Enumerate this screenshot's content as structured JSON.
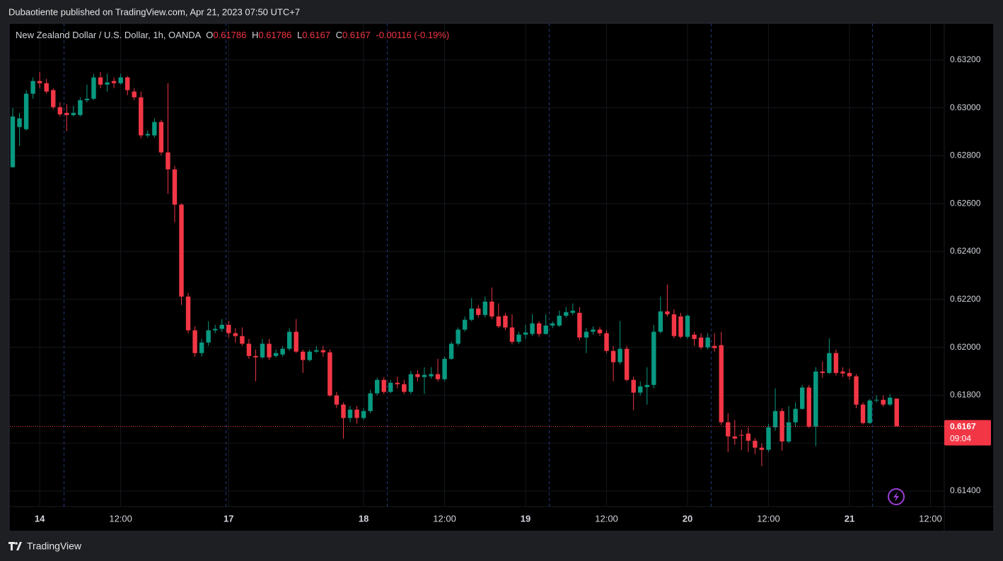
{
  "header": {
    "publisher": "Dubaotiente published on TradingView.com, Apr 21, 2023 07:50 UTC+7"
  },
  "footer": {
    "brand": "TradingView"
  },
  "chart_data": {
    "type": "candlestick",
    "title": "New Zealand Dollar / U.S. Dollar, 1h, OANDA",
    "legend_labels": {
      "open": "O",
      "high": "H",
      "low": "L",
      "close": "C"
    },
    "change": "-0.00116 (-0.19%)",
    "countdown": "09:04",
    "up_color": "#089981",
    "down_color": "#f23645",
    "grid": true,
    "open": [
      0.62752,
      0.6292,
      0.62911,
      0.63059,
      0.63112,
      0.63103,
      0.63074,
      0.63003,
      0.62979,
      0.6297,
      0.6297,
      0.63032,
      0.63038,
      0.63127,
      0.63097,
      0.63112,
      0.63103,
      0.63127,
      0.63068,
      0.63044,
      0.62885,
      0.62885,
      0.62941,
      0.62814,
      0.62743,
      0.62596,
      0.62212,
      0.62071,
      0.61976,
      0.6202,
      0.62071,
      0.62077,
      0.62094,
      0.62059,
      0.62047,
      0.62015,
      0.61964,
      0.61958,
      0.62015,
      0.61964,
      0.6197,
      0.61994,
      0.62065,
      0.61982,
      0.61947,
      0.61982,
      0.61988,
      0.61979,
      0.61799,
      0.61761,
      0.61705,
      0.6174,
      0.61705,
      0.61734,
      0.61808,
      0.61864,
      0.61814,
      0.61852,
      0.61846,
      0.61814,
      0.61888,
      0.61876,
      0.61879,
      0.61888,
      0.61867,
      0.61952,
      0.62015,
      0.62074,
      0.62115,
      0.62162,
      0.62135,
      0.62191,
      0.62129,
      0.62132,
      0.62083,
      0.62023,
      0.62053,
      0.62056,
      0.621,
      0.62056,
      0.62091,
      0.62091,
      0.62132,
      0.62144,
      0.62144,
      0.62041,
      0.62065,
      0.62074,
      0.62059,
      0.61985,
      0.61938,
      0.61994,
      0.61864,
      0.61811,
      0.61834,
      0.61843,
      0.62065,
      0.6215,
      0.62138,
      0.62129,
      0.62044,
      0.62053,
      0.62041,
      0.62,
      0.62006,
      0.62009,
      0.61687,
      0.61628,
      0.61634,
      0.6164,
      0.6161,
      0.61581,
      0.61572,
      0.61666,
      0.61734,
      0.61607,
      0.61687,
      0.61743,
      0.61832,
      0.61669,
      0.61899,
      0.61893,
      0.61976,
      0.61899,
      0.61893,
      0.61879,
      0.61761,
      0.61684,
      0.61778,
      0.61781,
      0.61761,
      0.61786
    ],
    "high": [
      0.62999,
      0.62979,
      0.63074,
      0.63127,
      0.6315,
      0.63121,
      0.63082,
      0.63023,
      0.63015,
      0.63009,
      0.63044,
      0.63097,
      0.63142,
      0.6315,
      0.63142,
      0.63127,
      0.63142,
      0.63133,
      0.63082,
      0.63068,
      0.62906,
      0.62956,
      0.6295,
      0.63103,
      0.62758,
      0.62601,
      0.62227,
      0.62088,
      0.62035,
      0.62109,
      0.62094,
      0.62118,
      0.62109,
      0.6208,
      0.62083,
      0.62035,
      0.61991,
      0.62035,
      0.62035,
      0.61991,
      0.62006,
      0.6208,
      0.62118,
      0.61991,
      0.61991,
      0.62006,
      0.62006,
      0.61991,
      0.61814,
      0.6177,
      0.61755,
      0.61755,
      0.61746,
      0.61823,
      0.61873,
      0.61876,
      0.61864,
      0.61878,
      0.61864,
      0.61902,
      0.61905,
      0.61917,
      0.61917,
      0.61952,
      0.61961,
      0.62023,
      0.62083,
      0.62129,
      0.62206,
      0.62176,
      0.62212,
      0.6225,
      0.62183,
      0.62144,
      0.62138,
      0.62065,
      0.62094,
      0.62138,
      0.62109,
      0.62138,
      0.62109,
      0.62153,
      0.62168,
      0.62183,
      0.62168,
      0.6208,
      0.62088,
      0.62085,
      0.62071,
      0.62006,
      0.62109,
      0.62006,
      0.61878,
      0.61858,
      0.61917,
      0.62094,
      0.62212,
      0.62262,
      0.62159,
      0.62144,
      0.62138,
      0.62065,
      0.62059,
      0.62059,
      0.62059,
      0.62065,
      0.61725,
      0.61696,
      0.61657,
      0.61666,
      0.61622,
      0.61599,
      0.61681,
      0.61829,
      0.61746,
      0.61755,
      0.6177,
      0.61843,
      0.61843,
      0.61917,
      0.61941,
      0.62038,
      0.61991,
      0.61917,
      0.61911,
      0.61888,
      0.6177,
      0.61784,
      0.61799,
      0.61799,
      0.61805,
      0.61786
    ],
    "low": [
      0.62752,
      0.62841,
      0.62905,
      0.63038,
      0.63082,
      0.63059,
      0.62994,
      0.62964,
      0.62903,
      0.62964,
      0.62964,
      0.63023,
      0.63032,
      0.63082,
      0.63068,
      0.63082,
      0.63097,
      0.63053,
      0.63032,
      0.62873,
      0.62876,
      0.62876,
      0.62802,
      0.6264,
      0.62522,
      0.62177,
      0.62059,
      0.61961,
      0.61961,
      0.62006,
      0.62059,
      0.62065,
      0.62041,
      0.6202,
      0.62006,
      0.61952,
      0.61858,
      0.61952,
      0.61947,
      0.61958,
      0.61961,
      0.61985,
      0.61976,
      0.61893,
      0.61941,
      0.61976,
      0.61961,
      0.61793,
      0.61746,
      0.61619,
      0.61687,
      0.61681,
      0.61696,
      0.61725,
      0.61799,
      0.61805,
      0.61808,
      0.61829,
      0.61805,
      0.61805,
      0.61858,
      0.61805,
      0.6187,
      0.61858,
      0.61858,
      0.61947,
      0.62006,
      0.62065,
      0.62109,
      0.62124,
      0.62124,
      0.62118,
      0.6208,
      0.62071,
      0.62012,
      0.62015,
      0.62035,
      0.62047,
      0.62044,
      0.62053,
      0.6208,
      0.62085,
      0.62124,
      0.62135,
      0.62029,
      0.61976,
      0.62053,
      0.62047,
      0.61976,
      0.61858,
      0.61929,
      0.61858,
      0.61737,
      0.61799,
      0.61761,
      0.61829,
      0.62059,
      0.62129,
      0.62038,
      0.62038,
      0.62035,
      0.62006,
      0.61991,
      0.61991,
      0.61982,
      0.61675,
      0.61563,
      0.61593,
      0.61572,
      0.61563,
      0.61554,
      0.61504,
      0.61563,
      0.61652,
      0.61569,
      0.61599,
      0.61666,
      0.6174,
      0.61663,
      0.61587,
      0.61873,
      0.61888,
      0.61882,
      0.61876,
      0.61864,
      0.61746,
      0.61678,
      0.61681,
      0.6177,
      0.61752,
      0.61755,
      0.6167
    ],
    "close": [
      0.62964,
      0.62956,
      0.63059,
      0.63112,
      0.63103,
      0.63068,
      0.63003,
      0.62973,
      0.6297,
      0.62979,
      0.63032,
      0.63038,
      0.63127,
      0.63097,
      0.63106,
      0.63103,
      0.63127,
      0.63074,
      0.63044,
      0.62885,
      0.62891,
      0.62941,
      0.62814,
      0.62743,
      0.62596,
      0.62212,
      0.62071,
      0.61976,
      0.6202,
      0.62071,
      0.62077,
      0.62094,
      0.62059,
      0.62047,
      0.62015,
      0.61964,
      0.61958,
      0.62015,
      0.61958,
      0.61976,
      0.61994,
      0.62065,
      0.61982,
      0.61947,
      0.61982,
      0.61988,
      0.61979,
      0.61799,
      0.61761,
      0.61705,
      0.6174,
      0.61705,
      0.61734,
      0.61808,
      0.61864,
      0.61814,
      0.61852,
      0.61846,
      0.61814,
      0.61888,
      0.61876,
      0.61885,
      0.61888,
      0.61867,
      0.61952,
      0.62015,
      0.62074,
      0.62115,
      0.62162,
      0.62135,
      0.62191,
      0.62129,
      0.62088,
      0.62083,
      0.62023,
      0.62053,
      0.62062,
      0.621,
      0.62056,
      0.62091,
      0.621,
      0.62132,
      0.62147,
      0.62153,
      0.62041,
      0.62065,
      0.62074,
      0.62059,
      0.61985,
      0.61938,
      0.61994,
      0.61864,
      0.61811,
      0.61837,
      0.61843,
      0.62065,
      0.6215,
      0.62138,
      0.62047,
      0.62044,
      0.62132,
      0.62035,
      0.62,
      0.62041,
      0.61997,
      0.61687,
      0.61628,
      0.61619,
      0.61631,
      0.6161,
      0.61581,
      0.61572,
      0.61666,
      0.61734,
      0.61607,
      0.61687,
      0.61743,
      0.61832,
      0.61669,
      0.61899,
      0.61893,
      0.61976,
      0.61893,
      0.61891,
      0.61879,
      0.61761,
      0.61684,
      0.61778,
      0.61781,
      0.61761,
      0.6179,
      0.6167
    ],
    "xlim": [
      -0.42,
      138.05
    ],
    "xticks": [
      {
        "value": 4,
        "label": "14"
      },
      {
        "value": 16,
        "label": "12:00"
      },
      {
        "value": 32,
        "label": "17"
      },
      {
        "value": 52,
        "label": "18"
      },
      {
        "value": 64,
        "label": "12:00"
      },
      {
        "value": 76,
        "label": "19"
      },
      {
        "value": 88,
        "label": "12:00"
      },
      {
        "value": 100,
        "label": "20"
      },
      {
        "value": 112,
        "label": "12:00"
      },
      {
        "value": 124,
        "label": "21"
      },
      {
        "value": 136,
        "label": "12:00"
      }
    ],
    "session_breaks": [
      7.6,
      31.6,
      55.5,
      79.5,
      103.5,
      127.4
    ],
    "ylim": [
      0.61335,
      0.63353
    ],
    "yticks": [
      {
        "value": 0.632,
        "label": "0.63200"
      },
      {
        "value": 0.63,
        "label": "0.63000"
      },
      {
        "value": 0.628,
        "label": "0.62800"
      },
      {
        "value": 0.626,
        "label": "0.62600"
      },
      {
        "value": 0.624,
        "label": "0.62400"
      },
      {
        "value": 0.622,
        "label": "0.62200"
      },
      {
        "value": 0.62,
        "label": "0.62000"
      },
      {
        "value": 0.618,
        "label": "0.61800"
      },
      {
        "value": 0.616,
        "label": "0.61600"
      },
      {
        "value": 0.614,
        "label": "0.61400"
      }
    ]
  }
}
